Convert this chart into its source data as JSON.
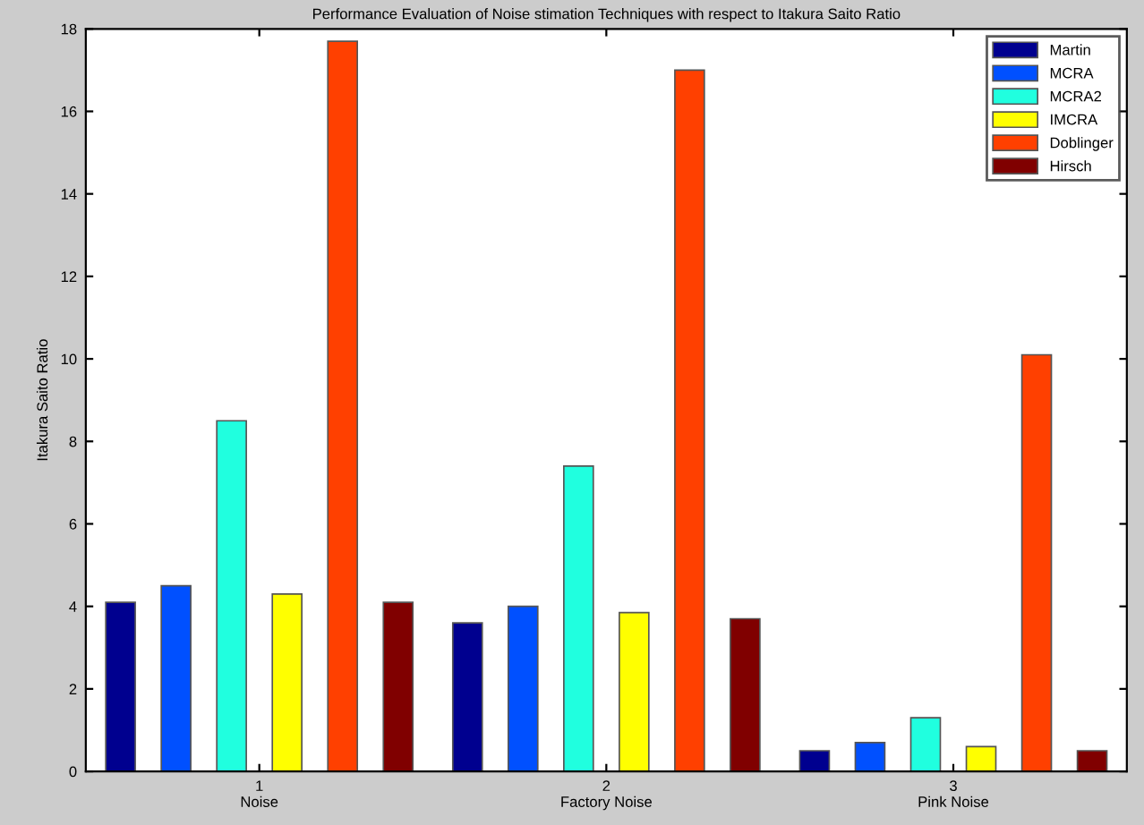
{
  "chart_data": {
    "type": "bar",
    "title": "Performance Evaluation of Noise stimation Techniques with respect to Itakura Saito Ratio",
    "ylabel": "Itakura Saito Ratio",
    "categories": [
      "1\nNoise",
      "2\nFactory Noise",
      "3\nPink Noise"
    ],
    "series": [
      {
        "name": "Martin",
        "color": "#00008f",
        "values": [
          4.1,
          3.6,
          0.5
        ]
      },
      {
        "name": "MCRA",
        "color": "#0050ff",
        "values": [
          4.5,
          4.0,
          0.7
        ]
      },
      {
        "name": "MCRA2",
        "color": "#20ffdf",
        "values": [
          8.5,
          7.4,
          1.3
        ]
      },
      {
        "name": "IMCRA",
        "color": "#ffff00",
        "values": [
          4.3,
          3.85,
          0.6
        ]
      },
      {
        "name": "Doblinger",
        "color": "#ff4000",
        "values": [
          17.7,
          17.0,
          10.1
        ]
      },
      {
        "name": "Hirsch",
        "color": "#800000",
        "values": [
          4.1,
          3.7,
          0.5
        ]
      }
    ],
    "ylim": [
      0,
      18
    ],
    "yticks": [
      0,
      2,
      4,
      6,
      8,
      10,
      12,
      14,
      16,
      18
    ],
    "grid": false,
    "legend": "top right"
  }
}
